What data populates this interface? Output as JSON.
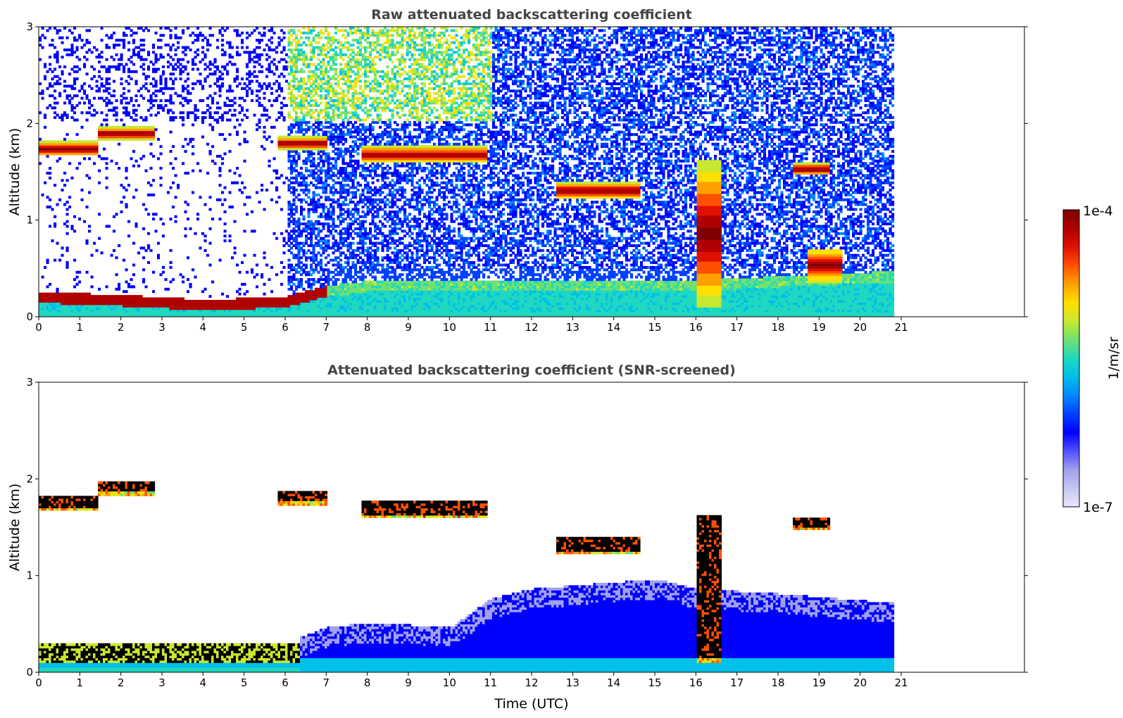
{
  "colormap": [
    "#e8e8f8",
    "#c6c6f0",
    "#a0a0ee",
    "#5050ff",
    "#0000ff",
    "#0040ff",
    "#0088ff",
    "#00c0e8",
    "#20d8c0",
    "#70e070",
    "#c8e830",
    "#ffe000",
    "#ffa000",
    "#ff5000",
    "#e01000",
    "#b00000",
    "#800000"
  ],
  "colorbar": {
    "max_label": "1e-4",
    "min_label": "1e-7",
    "unit_label": "1/m/sr",
    "scale": "log"
  },
  "chart_data": [
    {
      "type": "heatmap",
      "title": "Raw attenuated backscattering coefficient",
      "xlabel": "",
      "ylabel": "Altitude (km)",
      "xlim": [
        0,
        24
      ],
      "ylim": [
        0,
        3
      ],
      "x_ticks": [
        "0",
        "1",
        "2",
        "3",
        "4",
        "5",
        "6",
        "7",
        "8",
        "9",
        "10",
        "11",
        "12",
        "13",
        "14",
        "15",
        "16",
        "17",
        "18",
        "19",
        "20",
        "21"
      ],
      "y_ticks": [
        "0",
        "1",
        "2",
        "3"
      ],
      "data_extent_hours": [
        0,
        20.8
      ],
      "features": {
        "boundary_layer": [
          [
            0,
            0.18
          ],
          [
            1,
            0.17
          ],
          [
            2,
            0.15
          ],
          [
            3,
            0.13
          ],
          [
            4,
            0.1
          ],
          [
            5,
            0.12
          ],
          [
            6,
            0.14
          ],
          [
            7,
            0.25
          ],
          [
            8,
            0.3
          ],
          [
            11,
            0.3
          ],
          [
            16,
            0.3
          ],
          [
            18,
            0.35
          ],
          [
            20.8,
            0.4
          ]
        ],
        "cloud_layers": [
          {
            "t_start": 0,
            "t_end": 1.4,
            "base_km": 1.65,
            "top_km": 1.8
          },
          {
            "t_start": 1.4,
            "t_end": 2.8,
            "base_km": 1.82,
            "top_km": 1.95
          },
          {
            "t_start": 5.8,
            "t_end": 7.0,
            "base_km": 1.72,
            "top_km": 1.85
          },
          {
            "t_start": 7.8,
            "t_end": 10.9,
            "base_km": 1.58,
            "top_km": 1.75
          },
          {
            "t_start": 12.6,
            "t_end": 14.6,
            "base_km": 1.2,
            "top_km": 1.38
          },
          {
            "t_start": 16.0,
            "t_end": 16.6,
            "base_km": 0.1,
            "top_km": 1.6
          },
          {
            "t_start": 18.3,
            "t_end": 19.2,
            "base_km": 1.45,
            "top_km": 1.58
          },
          {
            "t_start": 18.7,
            "t_end": 19.5,
            "base_km": 0.35,
            "top_km": 0.7
          }
        ]
      }
    },
    {
      "type": "heatmap",
      "title": "Attenuated backscattering coefficient (SNR-screened)",
      "xlabel": "Time (UTC)",
      "ylabel": "Altitude (km)",
      "xlim": [
        0,
        24
      ],
      "ylim": [
        0,
        3
      ],
      "x_ticks": [
        "0",
        "1",
        "2",
        "3",
        "4",
        "5",
        "6",
        "7",
        "8",
        "9",
        "10",
        "11",
        "12",
        "13",
        "14",
        "15",
        "16",
        "17",
        "18",
        "19",
        "20",
        "21"
      ],
      "y_ticks": [
        "0",
        "1",
        "2",
        "3"
      ],
      "data_extent_hours": [
        0,
        20.8
      ],
      "features": {
        "blue_layer_top": [
          [
            0,
            0.3
          ],
          [
            6,
            0.3
          ],
          [
            7,
            0.45
          ],
          [
            8,
            0.5
          ],
          [
            10,
            0.45
          ],
          [
            11,
            0.75
          ],
          [
            12,
            0.85
          ],
          [
            15,
            0.95
          ],
          [
            16,
            0.85
          ],
          [
            18,
            0.8
          ],
          [
            20.8,
            0.7
          ]
        ]
      }
    }
  ]
}
